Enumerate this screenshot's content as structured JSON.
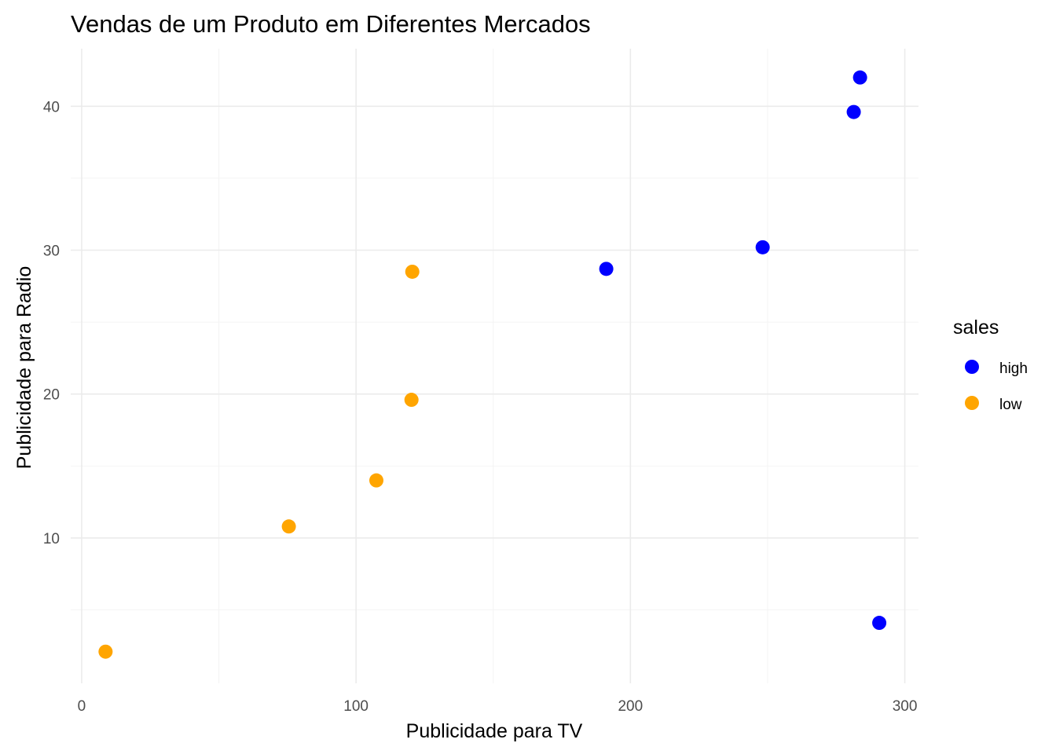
{
  "chart_data": {
    "type": "scatter",
    "title": "Vendas de um Produto em Diferentes Mercados",
    "xlabel": "Publicidade para TV",
    "ylabel": "Publicidade para Radio",
    "xlim": [
      -4,
      305
    ],
    "ylim": [
      -0.1,
      44
    ],
    "xticks": [
      0,
      100,
      200,
      300
    ],
    "xtick_labels": [
      "0",
      "100",
      "200",
      "300"
    ],
    "yticks": [
      10,
      20,
      30,
      40
    ],
    "ytick_labels": [
      "10",
      "20",
      "30",
      "40"
    ],
    "grid": true,
    "legend": {
      "title": "sales",
      "placement": "right",
      "entries": [
        {
          "label": "high",
          "color": "#0000ff"
        },
        {
          "label": "low",
          "color": "#ffa500"
        }
      ]
    },
    "series": [
      {
        "name": "high",
        "color": "#0000ff",
        "points": [
          {
            "x": 191.2,
            "y": 28.7
          },
          {
            "x": 248.2,
            "y": 30.2
          },
          {
            "x": 281.4,
            "y": 39.6
          },
          {
            "x": 283.7,
            "y": 42.0
          },
          {
            "x": 290.7,
            "y": 4.1
          }
        ]
      },
      {
        "name": "low",
        "color": "#ffa500",
        "points": [
          {
            "x": 8.7,
            "y": 2.1
          },
          {
            "x": 75.5,
            "y": 10.8
          },
          {
            "x": 107.4,
            "y": 14.0
          },
          {
            "x": 120.2,
            "y": 19.6
          },
          {
            "x": 120.5,
            "y": 28.5
          }
        ]
      }
    ]
  }
}
